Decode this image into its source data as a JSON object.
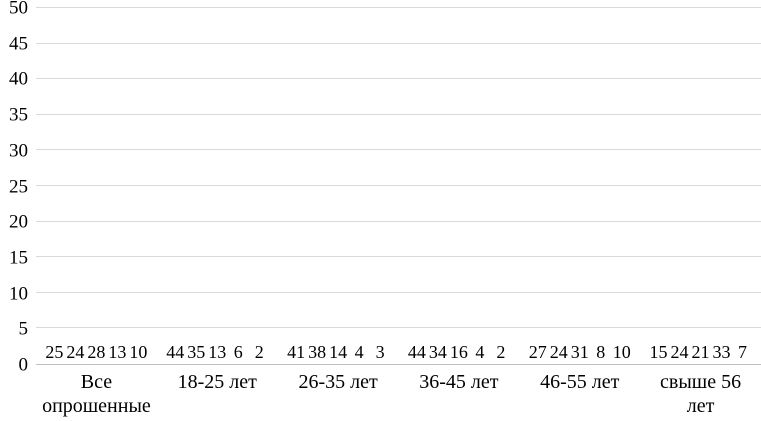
{
  "chart_data": {
    "type": "bar",
    "title": "",
    "xlabel": "",
    "ylabel": "",
    "ylim": [
      0,
      50
    ],
    "yticks": [
      0,
      5,
      10,
      15,
      20,
      25,
      30,
      35,
      40,
      45,
      50
    ],
    "grid": true,
    "legend": "none",
    "categories": [
      "Все\nопрошенные",
      "18-25 лет",
      "26-35 лет",
      "36-45 лет",
      "46-55 лет",
      "свыше 56 лет"
    ],
    "series": [
      {
        "color": "#36597F",
        "values": [
          25,
          44,
          41,
          44,
          27,
          15
        ]
      },
      {
        "color": "#3E6CA3",
        "values": [
          24,
          35,
          38,
          34,
          24,
          24
        ]
      },
      {
        "color": "#4E81BD",
        "values": [
          28,
          13,
          14,
          16,
          31,
          21
        ]
      },
      {
        "color": "#95A9CE",
        "values": [
          13,
          6,
          4,
          4,
          8,
          33
        ]
      },
      {
        "color": "#C3CEE3",
        "values": [
          10,
          2,
          3,
          2,
          10,
          7
        ]
      }
    ],
    "grid_color": "#D9D9D9",
    "axis_color": "#BFBFBF",
    "text_color": "#000000"
  }
}
